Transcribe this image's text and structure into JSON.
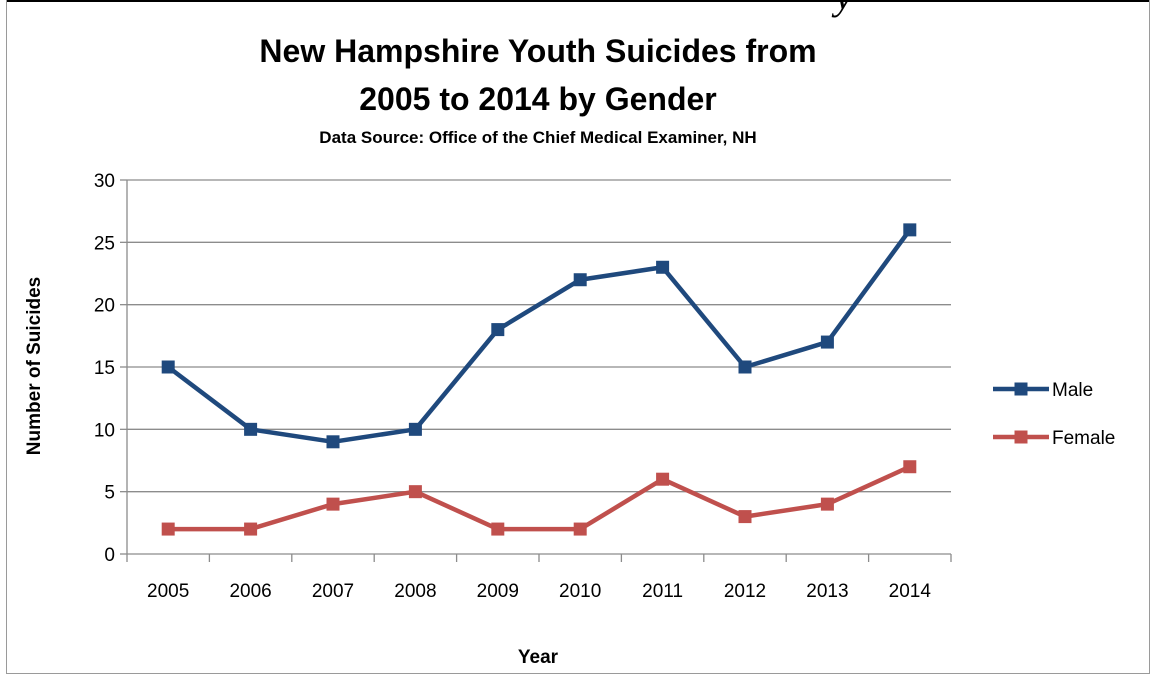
{
  "header_fragment": "y",
  "chart_data": {
    "type": "line",
    "title_line1": "New Hampshire Youth Suicides from",
    "title_line2": "2005 to 2014 by Gender",
    "subtitle": "Data Source: Office of the Chief Medical Examiner, NH",
    "xlabel": "Year",
    "ylabel": "Number of Suicides",
    "categories": [
      "2005",
      "2006",
      "2007",
      "2008",
      "2009",
      "2010",
      "2011",
      "2012",
      "2013",
      "2014"
    ],
    "ylim": [
      0,
      30
    ],
    "yticks": [
      0,
      5,
      10,
      15,
      20,
      25,
      30
    ],
    "grid": true,
    "legend_position": "right",
    "series": [
      {
        "name": "Male",
        "color": "#1F497D",
        "values": [
          15,
          10,
          9,
          10,
          18,
          22,
          23,
          15,
          17,
          26
        ]
      },
      {
        "name": "Female",
        "color": "#C0504D",
        "values": [
          2,
          2,
          4,
          5,
          2,
          2,
          6,
          3,
          4,
          7
        ]
      }
    ]
  }
}
